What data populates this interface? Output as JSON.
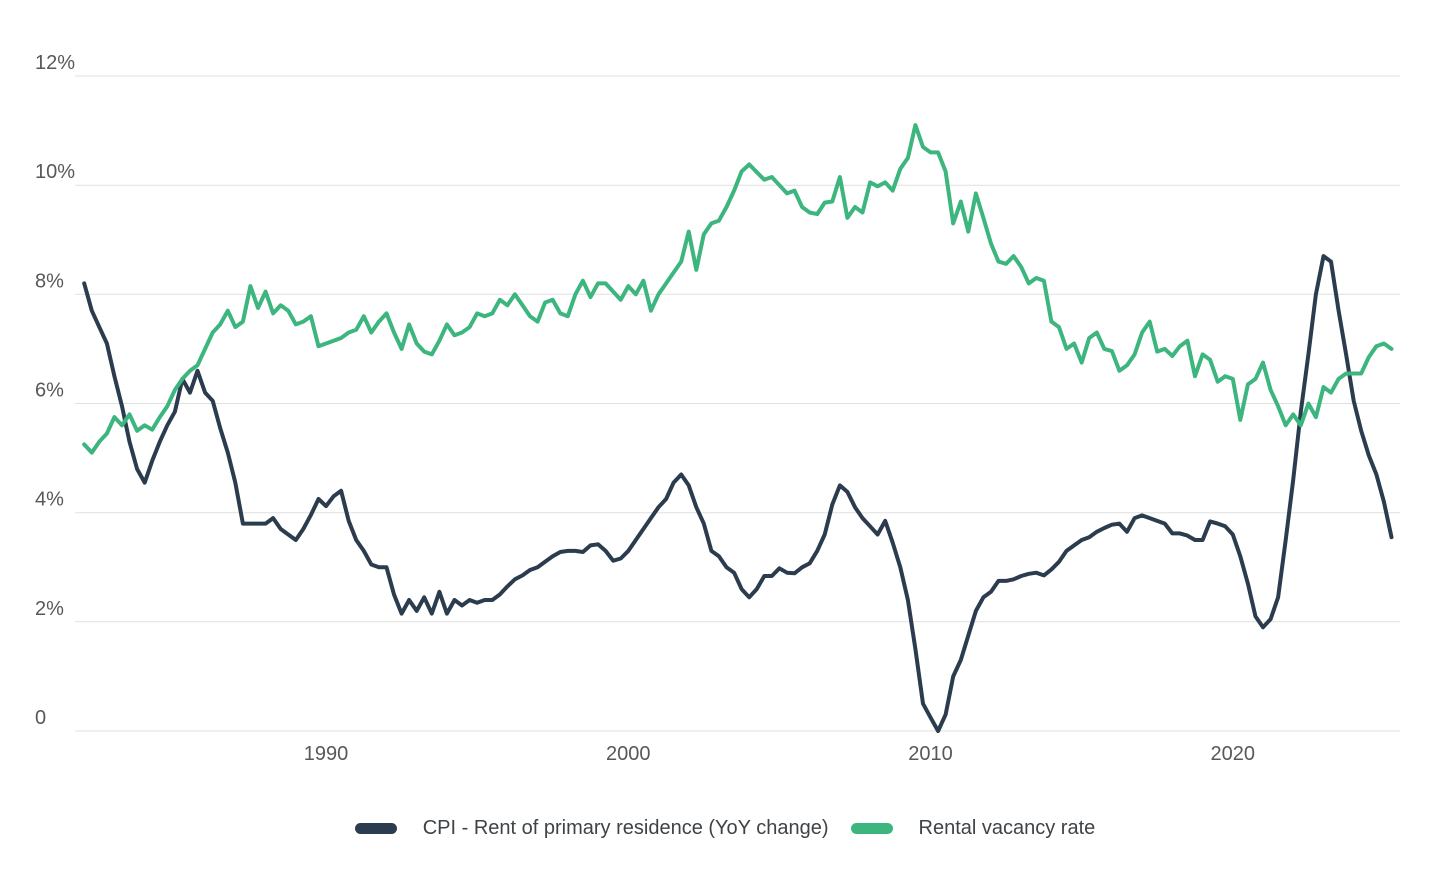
{
  "chart_data": {
    "type": "line",
    "title": "",
    "x_axis": {
      "label": "",
      "start_year": 1982,
      "interval_years": 0.25,
      "tick_years": [
        1990,
        2000,
        2010,
        2020
      ],
      "tick_labels": [
        "1990",
        "2000",
        "2010",
        "2020"
      ]
    },
    "y_axis": {
      "label": "",
      "unit": "%",
      "min": 0,
      "max": 12,
      "tick_values": [
        0,
        2,
        4,
        6,
        8,
        10,
        12
      ],
      "tick_labels": [
        "0",
        "2%",
        "4%",
        "6%",
        "8%",
        "10%",
        "12%"
      ]
    },
    "grid": true,
    "legend_position": "bottom-center",
    "series": [
      {
        "name": "CPI - Rent of primary residence (YoY change)",
        "color": "#2b3c4f",
        "values": [
          8.2,
          7.7,
          7.4,
          7.1,
          6.5,
          5.95,
          5.3,
          4.8,
          4.55,
          4.95,
          5.3,
          5.6,
          5.85,
          6.45,
          6.2,
          6.6,
          6.2,
          6.05,
          5.55,
          5.1,
          4.55,
          3.8,
          3.8,
          3.8,
          3.8,
          3.9,
          3.7,
          3.6,
          3.5,
          3.7,
          3.96,
          4.25,
          4.12,
          4.3,
          4.4,
          3.85,
          3.5,
          3.3,
          3.05,
          3.0,
          3.0,
          2.5,
          2.15,
          2.4,
          2.2,
          2.45,
          2.15,
          2.55,
          2.15,
          2.4,
          2.3,
          2.4,
          2.35,
          2.4,
          2.4,
          2.5,
          2.65,
          2.78,
          2.85,
          2.95,
          3.0,
          3.1,
          3.2,
          3.28,
          3.3,
          3.3,
          3.28,
          3.4,
          3.42,
          3.3,
          3.12,
          3.16,
          3.3,
          3.5,
          3.7,
          3.9,
          4.1,
          4.25,
          4.55,
          4.7,
          4.5,
          4.1,
          3.8,
          3.3,
          3.2,
          3.0,
          2.9,
          2.6,
          2.45,
          2.6,
          2.84,
          2.84,
          2.98,
          2.9,
          2.89,
          3.0,
          3.07,
          3.3,
          3.6,
          4.15,
          4.5,
          4.38,
          4.1,
          3.9,
          3.75,
          3.6,
          3.85,
          3.45,
          3.0,
          2.4,
          1.5,
          0.5,
          0.25,
          0.0,
          0.3,
          1.0,
          1.3,
          1.75,
          2.2,
          2.45,
          2.55,
          2.75,
          2.75,
          2.78,
          2.84,
          2.88,
          2.9,
          2.85,
          2.96,
          3.1,
          3.3,
          3.4,
          3.5,
          3.55,
          3.65,
          3.72,
          3.78,
          3.8,
          3.65,
          3.9,
          3.95,
          3.9,
          3.85,
          3.8,
          3.62,
          3.62,
          3.58,
          3.5,
          3.5,
          3.84,
          3.8,
          3.75,
          3.6,
          3.2,
          2.7,
          2.1,
          1.9,
          2.05,
          2.45,
          3.5,
          4.6,
          5.85,
          6.9,
          8.0,
          8.7,
          8.6,
          7.7,
          6.9,
          6.05,
          5.5,
          5.05,
          4.7,
          4.2,
          3.55
        ]
      },
      {
        "name": "Rental vacancy rate",
        "color": "#3db57e",
        "values": [
          5.25,
          5.1,
          5.3,
          5.45,
          5.75,
          5.6,
          5.8,
          5.5,
          5.6,
          5.52,
          5.75,
          5.95,
          6.25,
          6.45,
          6.6,
          6.7,
          7.0,
          7.3,
          7.45,
          7.7,
          7.4,
          7.5,
          8.15,
          7.75,
          8.05,
          7.65,
          7.8,
          7.7,
          7.45,
          7.5,
          7.6,
          7.05,
          7.1,
          7.15,
          7.2,
          7.3,
          7.35,
          7.6,
          7.3,
          7.5,
          7.65,
          7.3,
          7.0,
          7.45,
          7.1,
          6.95,
          6.9,
          7.15,
          7.45,
          7.25,
          7.3,
          7.4,
          7.65,
          7.6,
          7.65,
          7.9,
          7.8,
          8.0,
          7.8,
          7.6,
          7.5,
          7.85,
          7.9,
          7.65,
          7.6,
          8.0,
          8.25,
          7.95,
          8.2,
          8.2,
          8.05,
          7.9,
          8.15,
          8.0,
          8.25,
          7.7,
          8.0,
          8.2,
          8.4,
          8.6,
          9.15,
          8.45,
          9.1,
          9.3,
          9.35,
          9.6,
          9.9,
          10.25,
          10.38,
          10.24,
          10.1,
          10.15,
          10.0,
          9.85,
          9.9,
          9.6,
          9.5,
          9.47,
          9.68,
          9.7,
          10.15,
          9.4,
          9.6,
          9.5,
          10.05,
          9.98,
          10.05,
          9.9,
          10.3,
          10.5,
          11.1,
          10.7,
          10.6,
          10.6,
          10.25,
          9.3,
          9.7,
          9.15,
          9.85,
          9.4,
          8.93,
          8.6,
          8.56,
          8.7,
          8.5,
          8.2,
          8.3,
          8.25,
          7.5,
          7.4,
          7.0,
          7.1,
          6.75,
          7.2,
          7.3,
          7.0,
          6.96,
          6.6,
          6.7,
          6.9,
          7.3,
          7.5,
          6.95,
          7.0,
          6.87,
          7.05,
          7.15,
          6.5,
          6.9,
          6.8,
          6.4,
          6.5,
          6.45,
          5.7,
          6.35,
          6.45,
          6.75,
          6.25,
          5.95,
          5.6,
          5.8,
          5.6,
          6.0,
          5.75,
          6.3,
          6.2,
          6.45,
          6.55,
          6.55,
          6.55,
          6.85,
          7.05,
          7.1,
          7.0
        ]
      }
    ]
  },
  "colors": {
    "background": "#ffffff",
    "gridline": "#e0e0e0",
    "axis_label_text": "#57585a",
    "legend_text": "#3e4347",
    "cpi_line": "#2b3c4f",
    "vacancy_line": "#3db57e"
  },
  "legend": {
    "items": [
      {
        "label": "CPI - Rent of primary residence (YoY change)"
      },
      {
        "label": "Rental vacancy rate"
      }
    ]
  }
}
